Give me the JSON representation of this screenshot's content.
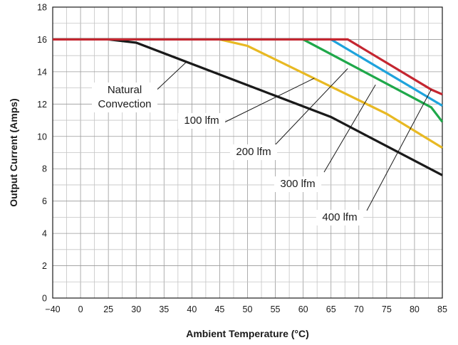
{
  "chart_data": {
    "type": "line",
    "xlabel": "Ambient Temperature (°C)",
    "ylabel": "Output Current (Amps)",
    "xlim": [
      -40,
      85
    ],
    "ylim": [
      0,
      18
    ],
    "x_tick_labels": [
      "−40",
      "0",
      "25",
      "30",
      "35",
      "40",
      "45",
      "50",
      "55",
      "60",
      "65",
      "70",
      "75",
      "80",
      "85"
    ],
    "x_tick_values": [
      -40,
      0,
      25,
      30,
      35,
      40,
      45,
      50,
      55,
      60,
      65,
      70,
      75,
      80,
      85
    ],
    "y_ticks": [
      0,
      2,
      4,
      6,
      8,
      10,
      12,
      14,
      16,
      18
    ],
    "grid": true,
    "series": [
      {
        "name": "Natural Convection",
        "color": "#1a1a1a",
        "points": [
          [
            -40,
            16
          ],
          [
            25,
            16
          ],
          [
            30,
            15.8
          ],
          [
            65,
            11.2
          ],
          [
            85,
            7.6
          ]
        ]
      },
      {
        "name": "100 lfm",
        "color": "#e8b923",
        "points": [
          [
            -40,
            16
          ],
          [
            45,
            16
          ],
          [
            50,
            15.6
          ],
          [
            75,
            11.4
          ],
          [
            85,
            9.3
          ]
        ]
      },
      {
        "name": "200 lfm",
        "color": "#1fa84a",
        "points": [
          [
            -40,
            16
          ],
          [
            60,
            16
          ],
          [
            83,
            11.8
          ],
          [
            85,
            10.9
          ]
        ]
      },
      {
        "name": "300 lfm",
        "color": "#1ea3dc",
        "points": [
          [
            -40,
            16
          ],
          [
            65,
            16
          ],
          [
            85,
            11.9
          ]
        ]
      },
      {
        "name": "400 lfm",
        "color": "#c42630",
        "points": [
          [
            -40,
            16
          ],
          [
            68,
            16
          ],
          [
            83,
            12.9
          ],
          [
            85,
            12.6
          ]
        ]
      }
    ],
    "annotations": [
      {
        "lines": [
          "Natural",
          "Convection"
        ],
        "target": [
          39,
          14.6
        ]
      },
      {
        "lines": [
          "100 lfm"
        ],
        "target": [
          62,
          13.6
        ]
      },
      {
        "lines": [
          "200 lfm"
        ],
        "target": [
          68,
          14.2
        ]
      },
      {
        "lines": [
          "300 lfm"
        ],
        "target": [
          73,
          13.2
        ]
      },
      {
        "lines": [
          "400 lfm"
        ],
        "target": [
          83,
          12.9
        ]
      }
    ]
  }
}
